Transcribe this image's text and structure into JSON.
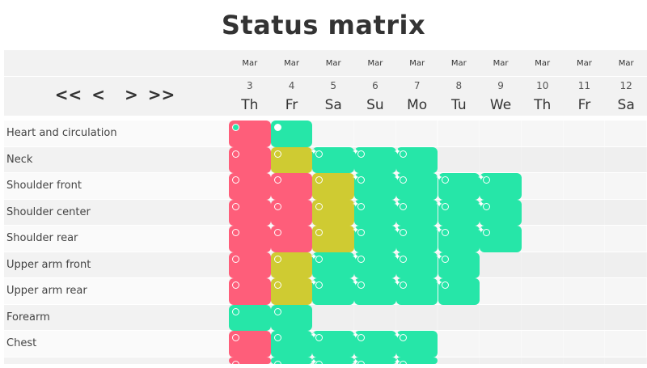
{
  "title": "Status matrix",
  "nav": {
    "first": "<<",
    "prev": "<",
    "next": ">",
    "last": ">>"
  },
  "colors": {
    "red": "#fe5e7a",
    "yellow": "#cfcb32",
    "green": "#26e6a8",
    "stop": "#333333"
  },
  "days": [
    {
      "month": "Mar",
      "day": "3",
      "weekday": "Th"
    },
    {
      "month": "Mar",
      "day": "4",
      "weekday": "Fr"
    },
    {
      "month": "Mar",
      "day": "5",
      "weekday": "Sa"
    },
    {
      "month": "Mar",
      "day": "6",
      "weekday": "Su"
    },
    {
      "month": "Mar",
      "day": "7",
      "weekday": "Mo"
    },
    {
      "month": "Mar",
      "day": "8",
      "weekday": "Tu"
    },
    {
      "month": "Mar",
      "day": "9",
      "weekday": "We"
    },
    {
      "month": "Mar",
      "day": "10",
      "weekday": "Th"
    },
    {
      "month": "Mar",
      "day": "11",
      "weekday": "Fr"
    },
    {
      "month": "Mar",
      "day": "12",
      "weekday": "Sa"
    }
  ],
  "rows": [
    {
      "label": "Heart and circulation",
      "cells": [
        "red",
        "green",
        null,
        null,
        null,
        null,
        null,
        null,
        null,
        null
      ]
    },
    {
      "label": "Neck",
      "cells": [
        "red",
        "yellow",
        "green",
        "green",
        "green",
        null,
        null,
        null,
        null,
        null
      ]
    },
    {
      "label": "Shoulder front",
      "cells": [
        "red",
        "red",
        "yellow",
        "green",
        "green",
        "green",
        "green",
        null,
        null,
        null
      ]
    },
    {
      "label": "Shoulder center",
      "cells": [
        "red",
        "red",
        "yellow",
        "green",
        "green",
        "green",
        "green",
        null,
        null,
        null
      ]
    },
    {
      "label": "Shoulder rear",
      "cells": [
        "red",
        "red",
        "yellow",
        "green",
        "green",
        "green",
        "green",
        null,
        null,
        null
      ]
    },
    {
      "label": "Upper arm front",
      "cells": [
        "red",
        "yellow",
        "green",
        "green",
        "green",
        "green",
        null,
        null,
        null,
        null
      ]
    },
    {
      "label": "Upper arm rear",
      "cells": [
        "red",
        "yellow",
        "green",
        "green",
        "green",
        "green",
        null,
        null,
        null,
        null
      ]
    },
    {
      "label": "Forearm",
      "cells": [
        "green",
        "green",
        null,
        null,
        null,
        null,
        null,
        null,
        null,
        null
      ]
    },
    {
      "label": "Chest",
      "cells": [
        "red",
        "green",
        "green",
        "green",
        "green",
        null,
        null,
        null,
        null,
        null
      ]
    },
    {
      "label": "",
      "cells": [
        "red",
        "green",
        "green",
        "green",
        "green",
        null,
        null,
        null,
        null,
        null
      ]
    }
  ]
}
